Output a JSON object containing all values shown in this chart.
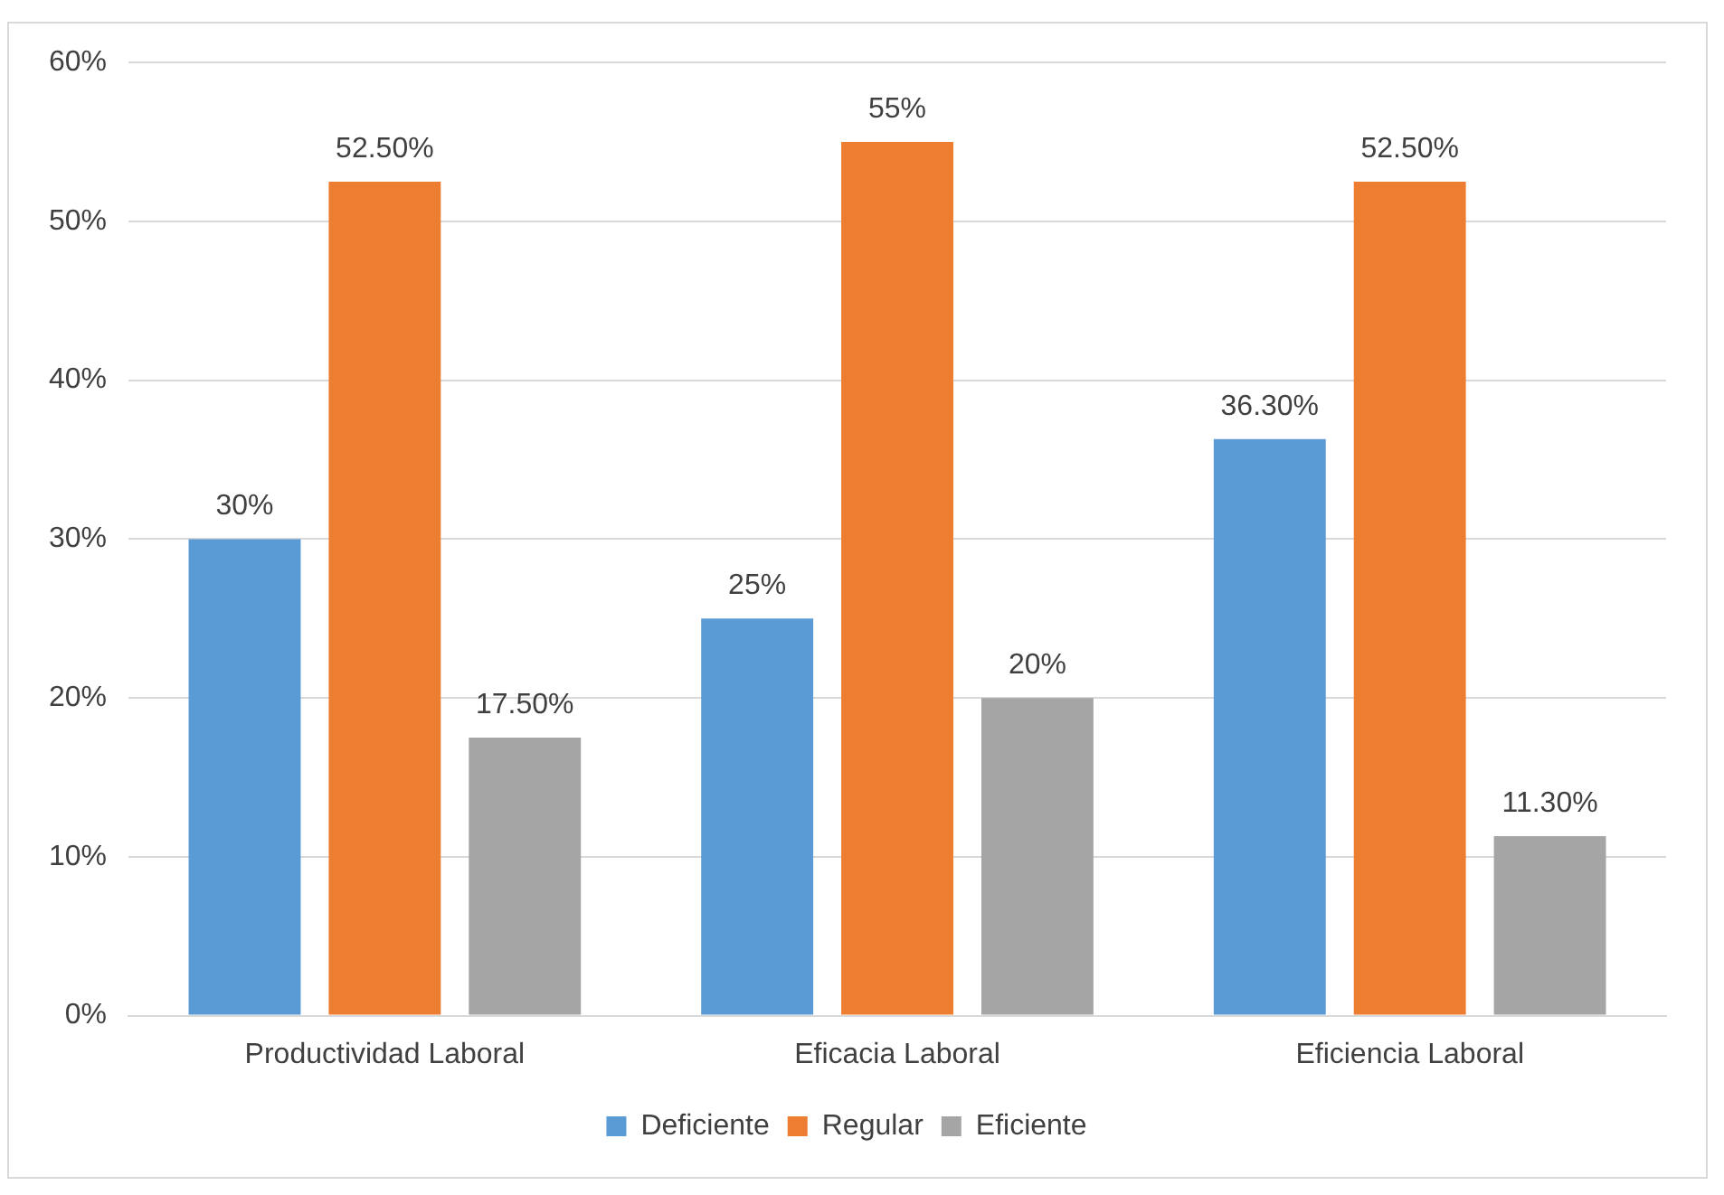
{
  "chart_data": {
    "type": "bar",
    "categories": [
      "Productividad Laboral",
      "Eficacia Laboral",
      "Eficiencia Laboral"
    ],
    "series": [
      {
        "name": "Deficiente",
        "color": "#5b9bd5",
        "values": [
          30,
          25,
          36.3
        ],
        "value_labels": [
          "30%",
          "25%",
          "36.30%"
        ]
      },
      {
        "name": "Regular",
        "color": "#ed7d31",
        "values": [
          52.5,
          55,
          52.5
        ],
        "value_labels": [
          "52.50%",
          "55%",
          "52.50%"
        ]
      },
      {
        "name": "Eficiente",
        "color": "#a5a5a5",
        "values": [
          17.5,
          20,
          11.3
        ],
        "value_labels": [
          "17.50%",
          "20%",
          "11.30%"
        ]
      }
    ],
    "ylim": [
      0,
      60
    ],
    "yticks": [
      {
        "value": 0,
        "label": "0%"
      },
      {
        "value": 10,
        "label": "10%"
      },
      {
        "value": 20,
        "label": "20%"
      },
      {
        "value": 30,
        "label": "30%"
      },
      {
        "value": 40,
        "label": "40%"
      },
      {
        "value": 50,
        "label": "50%"
      },
      {
        "value": 60,
        "label": "60%"
      }
    ],
    "grid": "y",
    "legend": "bottom"
  }
}
